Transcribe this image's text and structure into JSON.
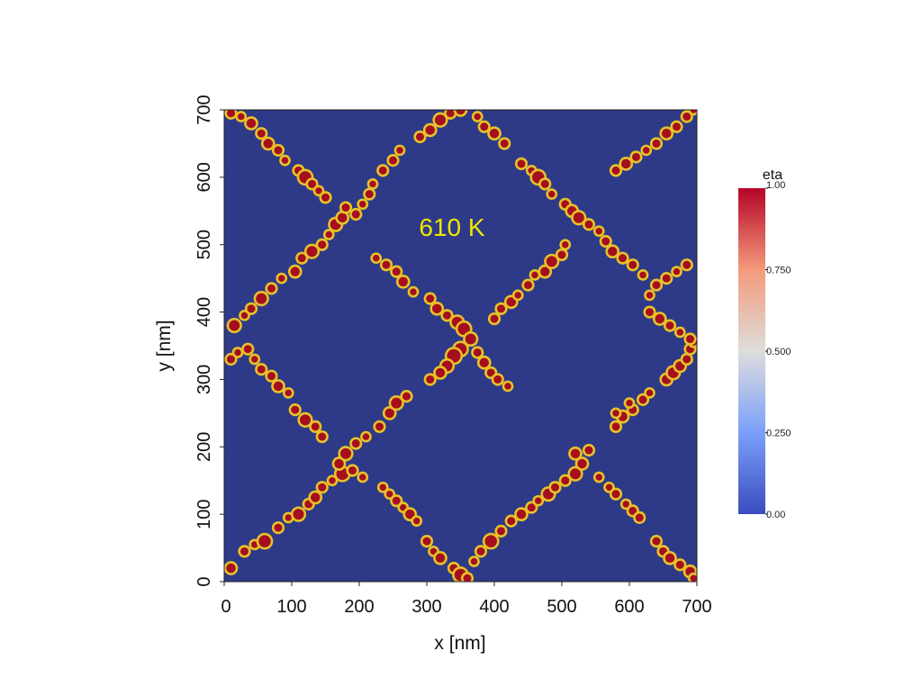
{
  "chart_data": {
    "type": "heatmap",
    "title": "610 K",
    "xlabel": "x [nm]",
    "ylabel": "y [nm]",
    "xlim": [
      0,
      700
    ],
    "ylim": [
      0,
      700
    ],
    "x_ticks": [
      "0",
      "100",
      "200",
      "300",
      "400",
      "500",
      "600",
      "700"
    ],
    "y_ticks": [
      "0",
      "100",
      "200",
      "300",
      "400",
      "500",
      "600",
      "700"
    ],
    "grid": false,
    "field": "eta",
    "colorbar": {
      "title": "eta",
      "range": [
        0,
        1
      ],
      "tick_labels": [
        "0.00",
        "0.250",
        "0.500",
        "0.750",
        "1.00"
      ],
      "tick_values": [
        0,
        0.25,
        0.5,
        0.75,
        1
      ]
    },
    "colors": {
      "background": "#2e3a87",
      "particle": "#a50f1e",
      "outline": "#e6c229",
      "title": "#f2e600",
      "cmap_low": "#3b4cc0",
      "cmap_mid": "#dddddd",
      "cmap_high": "#b40426"
    },
    "pattern": "diagonal chains of particles forming a diamond lattice with period ~350 nm",
    "particles": [
      [
        10,
        20,
        7
      ],
      [
        30,
        45,
        6
      ],
      [
        45,
        55,
        5
      ],
      [
        60,
        60,
        9
      ],
      [
        80,
        80,
        6
      ],
      [
        95,
        95,
        5
      ],
      [
        110,
        100,
        8
      ],
      [
        125,
        115,
        6
      ],
      [
        135,
        125,
        7
      ],
      [
        145,
        140,
        6
      ],
      [
        160,
        150,
        5
      ],
      [
        175,
        160,
        9
      ],
      [
        170,
        175,
        7
      ],
      [
        180,
        190,
        8
      ],
      [
        190,
        165,
        6
      ],
      [
        205,
        155,
        5
      ],
      [
        195,
        205,
        6
      ],
      [
        210,
        215,
        5
      ],
      [
        230,
        230,
        6
      ],
      [
        245,
        250,
        7
      ],
      [
        255,
        265,
        8
      ],
      [
        270,
        275,
        6
      ],
      [
        235,
        140,
        5
      ],
      [
        245,
        130,
        5
      ],
      [
        255,
        120,
        6
      ],
      [
        265,
        110,
        5
      ],
      [
        275,
        100,
        7
      ],
      [
        285,
        90,
        5
      ],
      [
        300,
        60,
        6
      ],
      [
        310,
        45,
        5
      ],
      [
        320,
        35,
        7
      ],
      [
        340,
        20,
        6
      ],
      [
        350,
        10,
        9
      ],
      [
        360,
        5,
        6
      ],
      [
        370,
        30,
        5
      ],
      [
        380,
        45,
        6
      ],
      [
        395,
        60,
        9
      ],
      [
        410,
        75,
        6
      ],
      [
        425,
        90,
        6
      ],
      [
        440,
        100,
        7
      ],
      [
        455,
        110,
        6
      ],
      [
        465,
        120,
        5
      ],
      [
        480,
        130,
        8
      ],
      [
        490,
        140,
        6
      ],
      [
        505,
        150,
        6
      ],
      [
        520,
        160,
        8
      ],
      [
        530,
        175,
        7
      ],
      [
        520,
        190,
        7
      ],
      [
        540,
        195,
        6
      ],
      [
        555,
        155,
        5
      ],
      [
        570,
        140,
        5
      ],
      [
        580,
        130,
        6
      ],
      [
        595,
        115,
        5
      ],
      [
        605,
        105,
        6
      ],
      [
        615,
        95,
        6
      ],
      [
        640,
        60,
        6
      ],
      [
        650,
        45,
        6
      ],
      [
        660,
        35,
        7
      ],
      [
        675,
        25,
        6
      ],
      [
        690,
        15,
        7
      ],
      [
        695,
        5,
        5
      ],
      [
        580,
        230,
        6
      ],
      [
        590,
        245,
        7
      ],
      [
        605,
        255,
        6
      ],
      [
        620,
        270,
        6
      ],
      [
        630,
        280,
        5
      ],
      [
        580,
        250,
        5
      ],
      [
        600,
        265,
        5
      ],
      [
        655,
        300,
        7
      ],
      [
        665,
        310,
        8
      ],
      [
        675,
        320,
        7
      ],
      [
        685,
        330,
        6
      ],
      [
        690,
        345,
        6
      ],
      [
        695,
        355,
        5
      ],
      [
        10,
        330,
        6
      ],
      [
        20,
        340,
        5
      ],
      [
        35,
        345,
        6
      ],
      [
        45,
        330,
        5
      ],
      [
        55,
        315,
        6
      ],
      [
        70,
        305,
        6
      ],
      [
        80,
        290,
        7
      ],
      [
        95,
        280,
        5
      ],
      [
        105,
        255,
        6
      ],
      [
        120,
        240,
        8
      ],
      [
        135,
        230,
        6
      ],
      [
        145,
        215,
        6
      ],
      [
        15,
        380,
        8
      ],
      [
        30,
        395,
        5
      ],
      [
        40,
        405,
        6
      ],
      [
        55,
        420,
        8
      ],
      [
        70,
        435,
        6
      ],
      [
        85,
        450,
        5
      ],
      [
        105,
        460,
        7
      ],
      [
        115,
        480,
        6
      ],
      [
        130,
        490,
        8
      ],
      [
        145,
        500,
        6
      ],
      [
        155,
        515,
        5
      ],
      [
        165,
        530,
        8
      ],
      [
        175,
        540,
        7
      ],
      [
        180,
        555,
        6
      ],
      [
        195,
        545,
        6
      ],
      [
        205,
        560,
        5
      ],
      [
        215,
        575,
        6
      ],
      [
        220,
        590,
        5
      ],
      [
        235,
        610,
        6
      ],
      [
        250,
        625,
        6
      ],
      [
        260,
        640,
        5
      ],
      [
        110,
        610,
        6
      ],
      [
        120,
        600,
        9
      ],
      [
        130,
        590,
        6
      ],
      [
        140,
        580,
        5
      ],
      [
        150,
        570,
        6
      ],
      [
        10,
        695,
        6
      ],
      [
        25,
        690,
        5
      ],
      [
        40,
        680,
        7
      ],
      [
        55,
        665,
        6
      ],
      [
        65,
        650,
        7
      ],
      [
        80,
        640,
        6
      ],
      [
        90,
        625,
        5
      ],
      [
        290,
        660,
        6
      ],
      [
        305,
        670,
        7
      ],
      [
        320,
        685,
        8
      ],
      [
        335,
        695,
        6
      ],
      [
        350,
        700,
        7
      ],
      [
        375,
        690,
        5
      ],
      [
        385,
        675,
        6
      ],
      [
        400,
        665,
        7
      ],
      [
        415,
        650,
        6
      ],
      [
        440,
        620,
        6
      ],
      [
        455,
        610,
        5
      ],
      [
        465,
        600,
        9
      ],
      [
        475,
        590,
        6
      ],
      [
        485,
        575,
        5
      ],
      [
        505,
        560,
        6
      ],
      [
        515,
        550,
        7
      ],
      [
        525,
        540,
        8
      ],
      [
        540,
        530,
        6
      ],
      [
        555,
        520,
        5
      ],
      [
        565,
        505,
        6
      ],
      [
        575,
        490,
        7
      ],
      [
        590,
        480,
        6
      ],
      [
        605,
        470,
        6
      ],
      [
        620,
        455,
        5
      ],
      [
        580,
        610,
        6
      ],
      [
        595,
        620,
        7
      ],
      [
        610,
        630,
        6
      ],
      [
        625,
        640,
        5
      ],
      [
        640,
        650,
        6
      ],
      [
        655,
        665,
        7
      ],
      [
        670,
        675,
        6
      ],
      [
        685,
        690,
        6
      ],
      [
        695,
        700,
        5
      ],
      [
        225,
        480,
        5
      ],
      [
        240,
        470,
        6
      ],
      [
        255,
        460,
        6
      ],
      [
        265,
        445,
        7
      ],
      [
        280,
        430,
        5
      ],
      [
        305,
        420,
        6
      ],
      [
        315,
        405,
        7
      ],
      [
        330,
        395,
        6
      ],
      [
        345,
        385,
        8
      ],
      [
        355,
        375,
        9
      ],
      [
        365,
        360,
        8
      ],
      [
        350,
        345,
        9
      ],
      [
        340,
        335,
        10
      ],
      [
        330,
        320,
        8
      ],
      [
        320,
        310,
        7
      ],
      [
        305,
        300,
        6
      ],
      [
        375,
        340,
        6
      ],
      [
        385,
        325,
        7
      ],
      [
        395,
        310,
        6
      ],
      [
        405,
        300,
        6
      ],
      [
        420,
        290,
        5
      ],
      [
        400,
        390,
        6
      ],
      [
        410,
        405,
        6
      ],
      [
        425,
        415,
        7
      ],
      [
        435,
        425,
        5
      ],
      [
        450,
        440,
        6
      ],
      [
        460,
        455,
        5
      ],
      [
        475,
        460,
        7
      ],
      [
        485,
        475,
        8
      ],
      [
        500,
        485,
        6
      ],
      [
        505,
        500,
        5
      ],
      [
        630,
        400,
        6
      ],
      [
        645,
        390,
        7
      ],
      [
        660,
        380,
        6
      ],
      [
        675,
        370,
        5
      ],
      [
        690,
        360,
        6
      ],
      [
        630,
        425,
        5
      ],
      [
        640,
        440,
        6
      ],
      [
        655,
        450,
        6
      ],
      [
        670,
        460,
        5
      ],
      [
        685,
        470,
        6
      ]
    ]
  }
}
